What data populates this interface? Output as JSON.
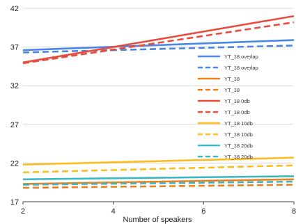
{
  "chart_data": {
    "type": "line",
    "title": "",
    "xlabel": "Number of speakers",
    "ylabel": "",
    "xlim": [
      2,
      8
    ],
    "ylim": [
      17,
      42
    ],
    "x_ticks": [
      2,
      4,
      6,
      8
    ],
    "y_ticks": [
      17,
      22,
      27,
      32,
      37,
      42
    ],
    "grid": "horizontal",
    "legend_position": "right",
    "series": [
      {
        "name": "YT_18 overlap",
        "color": "#4a86e8",
        "dash": "solid",
        "x": [
          2,
          8
        ],
        "y": [
          36.6,
          37.9
        ]
      },
      {
        "name": "YT_18 overlap",
        "color": "#4a86e8",
        "dash": "dashed",
        "x": [
          2,
          8
        ],
        "y": [
          36.3,
          37.2
        ]
      },
      {
        "name": "YT_18",
        "color": "#f07f1e",
        "dash": "solid",
        "x": [
          2,
          8
        ],
        "y": [
          19.3,
          19.9
        ]
      },
      {
        "name": "YT_18",
        "color": "#f07f1e",
        "dash": "dashed",
        "x": [
          2,
          8
        ],
        "y": [
          18.8,
          19.2
        ]
      },
      {
        "name": "YT_18 0db",
        "color": "#e84c3d",
        "dash": "solid",
        "x": [
          2,
          8
        ],
        "y": [
          35.0,
          41.0
        ]
      },
      {
        "name": "YT_18 0db",
        "color": "#e84c3d",
        "dash": "dashed",
        "x": [
          2,
          8
        ],
        "y": [
          34.9,
          40.2
        ]
      },
      {
        "name": "YT_18 10db",
        "color": "#fbbc1e",
        "dash": "solid",
        "x": [
          2,
          8
        ],
        "y": [
          21.8,
          22.7
        ]
      },
      {
        "name": "YT_18 10db",
        "color": "#fbbc1e",
        "dash": "dashed",
        "x": [
          2,
          8
        ],
        "y": [
          20.8,
          21.7
        ]
      },
      {
        "name": "YT_18 20db",
        "color": "#3ab7c2",
        "dash": "solid",
        "x": [
          2,
          8
        ],
        "y": [
          19.9,
          20.3
        ]
      },
      {
        "name": "YT_18 20db",
        "color": "#3ab7c2",
        "dash": "dashed",
        "x": [
          2,
          8
        ],
        "y": [
          19.2,
          19.6
        ]
      }
    ]
  }
}
